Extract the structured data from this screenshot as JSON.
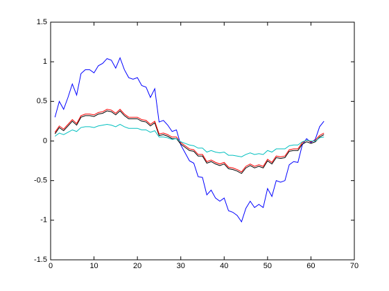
{
  "chart_data": {
    "type": "line",
    "x": [
      1,
      2,
      3,
      4,
      5,
      6,
      7,
      8,
      9,
      10,
      11,
      12,
      13,
      14,
      15,
      16,
      17,
      18,
      19,
      20,
      21,
      22,
      23,
      24,
      25,
      26,
      27,
      28,
      29,
      30,
      31,
      32,
      33,
      34,
      35,
      36,
      37,
      38,
      39,
      40,
      41,
      42,
      43,
      44,
      45,
      46,
      47,
      48,
      49,
      50,
      51,
      52,
      53,
      54,
      55,
      56,
      57,
      58,
      59,
      60,
      61,
      62,
      63
    ],
    "series": [
      {
        "color": "#0000ff",
        "values": [
          0.3,
          0.5,
          0.4,
          0.55,
          0.72,
          0.58,
          0.85,
          0.9,
          0.9,
          0.86,
          0.95,
          0.98,
          1.04,
          1.02,
          0.92,
          1.05,
          0.9,
          0.8,
          0.78,
          0.8,
          0.7,
          0.68,
          0.55,
          0.66,
          0.24,
          0.26,
          0.2,
          0.12,
          0.14,
          -0.05,
          -0.15,
          -0.25,
          -0.28,
          -0.45,
          -0.46,
          -0.68,
          -0.62,
          -0.72,
          -0.76,
          -0.72,
          -0.88,
          -0.9,
          -0.94,
          -1.02,
          -0.85,
          -0.76,
          -0.84,
          -0.8,
          -0.84,
          -0.6,
          -0.7,
          -0.5,
          -0.52,
          -0.5,
          -0.3,
          -0.26,
          -0.27,
          -0.05,
          0.03,
          -0.02,
          0.02,
          0.18,
          0.25
        ]
      },
      {
        "color": "#000000",
        "values": [
          0.09,
          0.17,
          0.13,
          0.19,
          0.25,
          0.2,
          0.3,
          0.32,
          0.32,
          0.31,
          0.34,
          0.35,
          0.38,
          0.37,
          0.33,
          0.38,
          0.32,
          0.28,
          0.28,
          0.28,
          0.25,
          0.24,
          0.19,
          0.23,
          0.07,
          0.08,
          0.06,
          0.03,
          0.03,
          -0.04,
          -0.08,
          -0.12,
          -0.13,
          -0.19,
          -0.19,
          -0.28,
          -0.26,
          -0.29,
          -0.31,
          -0.29,
          -0.35,
          -0.36,
          -0.38,
          -0.41,
          -0.34,
          -0.31,
          -0.34,
          -0.32,
          -0.34,
          -0.25,
          -0.29,
          -0.21,
          -0.22,
          -0.21,
          -0.13,
          -0.12,
          -0.12,
          -0.04,
          -0.01,
          -0.03,
          -0.01,
          0.05,
          0.08
        ]
      },
      {
        "color": "#ff0000",
        "values": [
          0.11,
          0.19,
          0.15,
          0.21,
          0.27,
          0.22,
          0.32,
          0.34,
          0.34,
          0.33,
          0.36,
          0.37,
          0.4,
          0.39,
          0.35,
          0.4,
          0.34,
          0.3,
          0.3,
          0.3,
          0.27,
          0.26,
          0.21,
          0.25,
          0.09,
          0.1,
          0.08,
          0.05,
          0.05,
          -0.02,
          -0.06,
          -0.1,
          -0.11,
          -0.17,
          -0.17,
          -0.26,
          -0.24,
          -0.27,
          -0.29,
          -0.27,
          -0.33,
          -0.34,
          -0.36,
          -0.39,
          -0.32,
          -0.29,
          -0.32,
          -0.3,
          -0.32,
          -0.23,
          -0.27,
          -0.19,
          -0.2,
          -0.19,
          -0.11,
          -0.1,
          -0.1,
          -0.02,
          0.01,
          -0.01,
          0.01,
          0.07,
          0.1
        ]
      },
      {
        "color": "#00bfbf",
        "values": [
          0.06,
          0.1,
          0.08,
          0.11,
          0.14,
          0.12,
          0.17,
          0.18,
          0.18,
          0.17,
          0.19,
          0.2,
          0.21,
          0.2,
          0.18,
          0.21,
          0.18,
          0.16,
          0.16,
          0.16,
          0.14,
          0.14,
          0.11,
          0.13,
          0.05,
          0.05,
          0.04,
          0.02,
          0.03,
          -0.01,
          -0.03,
          -0.05,
          -0.06,
          -0.09,
          -0.09,
          -0.14,
          -0.12,
          -0.14,
          -0.15,
          -0.14,
          -0.18,
          -0.18,
          -0.19,
          -0.2,
          -0.17,
          -0.15,
          -0.17,
          -0.16,
          -0.17,
          -0.12,
          -0.14,
          -0.1,
          -0.1,
          -0.1,
          -0.06,
          -0.05,
          -0.05,
          -0.01,
          0.01,
          0,
          0,
          0.04,
          0.05
        ]
      }
    ],
    "xlim": [
      0,
      70
    ],
    "xticks": [
      0,
      10,
      20,
      30,
      40,
      50,
      60,
      70
    ],
    "ylim": [
      -1.5,
      1.5
    ],
    "yticks": [
      -1.5,
      -1,
      -0.5,
      0,
      0.5,
      1,
      1.5
    ]
  }
}
